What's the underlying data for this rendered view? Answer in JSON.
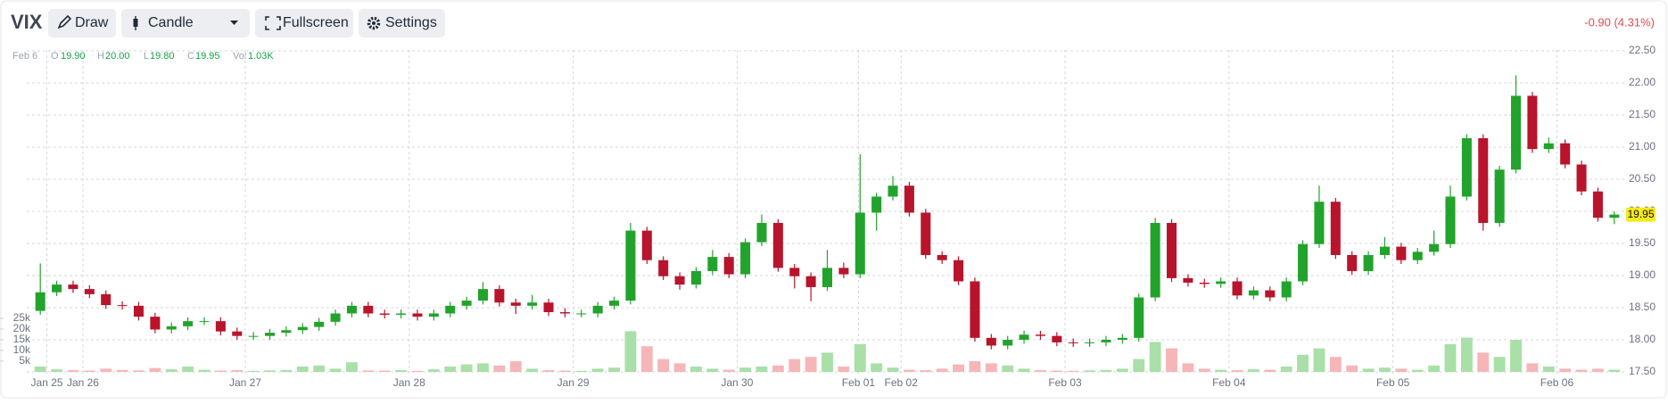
{
  "toolbar": {
    "symbol": "VIX",
    "buttons": [
      "Draw",
      "Candle",
      "Fullscreen",
      "Settings"
    ],
    "change": "-0.90 (4.31%)"
  },
  "status": {
    "date": "Feb 6",
    "items": [
      {
        "key": "O",
        "value": "19.90"
      },
      {
        "key": "H",
        "value": "20.00"
      },
      {
        "key": "L",
        "value": "19.80"
      },
      {
        "key": "C",
        "value": "19.95"
      },
      {
        "key": "Vol",
        "value": "1.03K"
      }
    ]
  },
  "chart_data": {
    "type": "candlestick",
    "open": [
      18.45,
      18.74,
      18.86,
      18.79,
      18.71,
      18.54,
      18.53,
      18.36,
      18.16,
      18.21,
      18.29,
      18.29,
      18.13,
      18.06,
      18.06,
      18.11,
      18.15,
      18.2,
      18.28,
      18.41,
      18.53,
      18.41,
      18.39,
      18.41,
      18.36,
      18.41,
      18.53,
      18.61,
      18.79,
      18.58,
      18.53,
      18.58,
      18.43,
      18.41,
      18.41,
      18.53,
      18.61,
      19.7,
      19.24,
      18.99,
      18.86,
      19.07,
      19.29,
      19.02,
      19.52,
      19.82,
      19.12,
      18.99,
      18.82,
      19.12,
      19.02,
      19.98,
      20.23,
      20.4,
      19.98,
      19.32,
      19.24,
      18.91,
      18.03,
      17.91,
      18.0,
      18.08,
      18.06,
      17.96,
      17.95,
      17.96,
      18.0,
      18.03,
      18.66,
      19.82,
      18.96,
      18.89,
      18.87,
      18.91,
      18.69,
      18.77,
      18.66,
      18.91,
      19.49,
      20.15,
      19.32,
      19.07,
      19.32,
      19.45,
      19.24,
      19.37,
      19.49,
      20.23,
      21.14,
      19.82,
      20.65,
      21.8,
      20.97,
      21.06,
      20.73,
      20.31,
      19.9
    ],
    "high": [
      19.19,
      18.92,
      18.92,
      18.85,
      18.77,
      18.6,
      18.59,
      18.42,
      18.27,
      18.35,
      18.35,
      18.35,
      18.19,
      18.12,
      18.17,
      18.21,
      18.26,
      18.34,
      18.47,
      18.59,
      18.59,
      18.47,
      18.47,
      18.47,
      18.47,
      18.59,
      18.67,
      18.9,
      18.85,
      18.64,
      18.7,
      18.64,
      18.49,
      18.47,
      18.59,
      18.67,
      19.82,
      19.76,
      19.3,
      19.05,
      19.13,
      19.4,
      19.35,
      19.58,
      19.95,
      19.88,
      19.18,
      19.05,
      19.4,
      19.2,
      20.89,
      20.29,
      20.55,
      20.46,
      20.04,
      19.38,
      19.3,
      18.97,
      18.09,
      18.06,
      18.14,
      18.14,
      18.12,
      18.02,
      18.02,
      18.06,
      18.09,
      18.72,
      19.9,
      19.88,
      19.02,
      18.95,
      18.97,
      18.97,
      18.83,
      18.83,
      18.97,
      19.55,
      20.4,
      20.21,
      19.38,
      19.38,
      19.6,
      19.51,
      19.43,
      19.7,
      20.4,
      21.2,
      21.2,
      20.71,
      22.12,
      21.86,
      21.15,
      21.12,
      20.79,
      20.37,
      20.0
    ],
    "low": [
      18.39,
      18.68,
      18.73,
      18.65,
      18.48,
      18.47,
      18.3,
      18.1,
      18.1,
      18.15,
      18.23,
      18.07,
      18.0,
      18.0,
      18.0,
      18.05,
      18.09,
      18.14,
      18.22,
      18.35,
      18.35,
      18.33,
      18.33,
      18.3,
      18.3,
      18.35,
      18.47,
      18.55,
      18.52,
      18.4,
      18.47,
      18.37,
      18.35,
      18.35,
      18.35,
      18.47,
      18.55,
      19.18,
      18.93,
      18.78,
      18.8,
      19.01,
      18.96,
      18.96,
      19.46,
      19.06,
      18.8,
      18.6,
      18.76,
      18.96,
      18.96,
      19.7,
      20.17,
      19.92,
      19.26,
      19.18,
      18.85,
      17.97,
      17.85,
      17.85,
      17.94,
      18.0,
      17.9,
      17.89,
      17.89,
      17.9,
      17.94,
      17.97,
      18.6,
      18.9,
      18.83,
      18.81,
      18.81,
      18.63,
      18.63,
      18.6,
      18.6,
      18.85,
      19.43,
      19.26,
      19.01,
      19.01,
      19.26,
      19.18,
      19.18,
      19.31,
      19.43,
      20.17,
      19.7,
      19.76,
      20.59,
      20.91,
      20.91,
      20.67,
      20.25,
      19.84,
      19.8
    ],
    "close": [
      18.74,
      18.86,
      18.79,
      18.71,
      18.54,
      18.53,
      18.36,
      18.16,
      18.21,
      18.29,
      18.29,
      18.13,
      18.06,
      18.06,
      18.11,
      18.15,
      18.2,
      18.28,
      18.41,
      18.53,
      18.41,
      18.39,
      18.41,
      18.36,
      18.41,
      18.53,
      18.61,
      18.79,
      18.58,
      18.53,
      18.58,
      18.43,
      18.41,
      18.41,
      18.53,
      18.61,
      19.7,
      19.24,
      18.99,
      18.86,
      19.07,
      19.29,
      19.02,
      19.52,
      19.82,
      19.12,
      18.99,
      18.82,
      19.12,
      19.02,
      19.98,
      20.23,
      20.4,
      19.98,
      19.32,
      19.24,
      18.91,
      18.03,
      17.91,
      18.0,
      18.08,
      18.06,
      17.96,
      17.95,
      17.96,
      18.0,
      18.03,
      18.66,
      19.82,
      18.96,
      18.89,
      18.87,
      18.91,
      18.69,
      18.77,
      18.66,
      18.91,
      19.49,
      20.15,
      19.32,
      19.07,
      19.32,
      19.45,
      19.24,
      19.37,
      19.49,
      20.23,
      21.14,
      19.82,
      20.65,
      21.8,
      20.97,
      21.06,
      20.73,
      20.31,
      19.9,
      19.95
    ],
    "volume": [
      2500,
      1200,
      800,
      600,
      1500,
      900,
      700,
      1800,
      1200,
      2500,
      1000,
      600,
      800,
      500,
      700,
      900,
      2500,
      3000,
      1500,
      4500,
      700,
      600,
      800,
      500,
      1200,
      2500,
      3500,
      4000,
      3000,
      5000,
      1500,
      800,
      600,
      500,
      1500,
      2000,
      19000,
      12000,
      6000,
      4000,
      2500,
      1500,
      1000,
      2000,
      2500,
      3000,
      6000,
      7000,
      9000,
      2500,
      13000,
      4000,
      2000,
      1000,
      800,
      1500,
      3500,
      5000,
      4000,
      3000,
      1500,
      800,
      600,
      500,
      700,
      900,
      1500,
      6000,
      14000,
      11000,
      4000,
      1500,
      1000,
      800,
      1200,
      1000,
      2500,
      8000,
      11000,
      7000,
      3000,
      1500,
      2000,
      1500,
      1000,
      3000,
      13000,
      16000,
      9000,
      7000,
      15000,
      4000,
      2500,
      1500,
      1000,
      1500,
      1030
    ],
    "up_color": "#22a32b",
    "down_color": "#b8142b",
    "up_volume_color": "#a8e0a8",
    "down_volume_color": "#f6b6b8",
    "xlim": [
      0,
      97
    ],
    "xticks": [
      {
        "value": 0.9,
        "label": "Jan 25"
      },
      {
        "value": 3.1,
        "label": "Jan 26"
      },
      {
        "value": 13.0,
        "label": "Jan 27"
      },
      {
        "value": 23.0,
        "label": "Jan 28"
      },
      {
        "value": 33.0,
        "label": "Jan 29"
      },
      {
        "value": 43.0,
        "label": "Jan 30"
      },
      {
        "value": 50.4,
        "label": "Feb 01"
      },
      {
        "value": 53.0,
        "label": "Feb 02"
      },
      {
        "value": 63.0,
        "label": "Feb 03"
      },
      {
        "value": 73.0,
        "label": "Feb 04"
      },
      {
        "value": 83.0,
        "label": "Feb 05"
      },
      {
        "value": 93.0,
        "label": "Feb 06"
      }
    ],
    "ylim": [
      17.5,
      22.5
    ],
    "yticks": [
      {
        "value": 17.5,
        "label": "17.50"
      },
      {
        "value": 18,
        "label": "18.00"
      },
      {
        "value": 18.5,
        "label": "18.50"
      },
      {
        "value": 19,
        "label": "19.00"
      },
      {
        "value": 19.5,
        "label": "19.50"
      },
      {
        "value": 20,
        "label": "20.00"
      },
      {
        "value": 20.5,
        "label": "20.50"
      },
      {
        "value": 21,
        "label": "21.00"
      },
      {
        "value": 21.5,
        "label": "21.50"
      },
      {
        "value": 22,
        "label": "22.00"
      },
      {
        "value": 22.5,
        "label": "22.50"
      }
    ],
    "volume_lim": [
      0,
      25000
    ],
    "volume_ticks": [
      {
        "value": 5000,
        "label": "5k"
      },
      {
        "value": 10000,
        "label": "10k"
      },
      {
        "value": 15000,
        "label": "15k"
      },
      {
        "value": 20000,
        "label": "20k"
      },
      {
        "value": 25000,
        "label": "25k"
      }
    ],
    "grid": true,
    "last_price_label": "19.95"
  }
}
